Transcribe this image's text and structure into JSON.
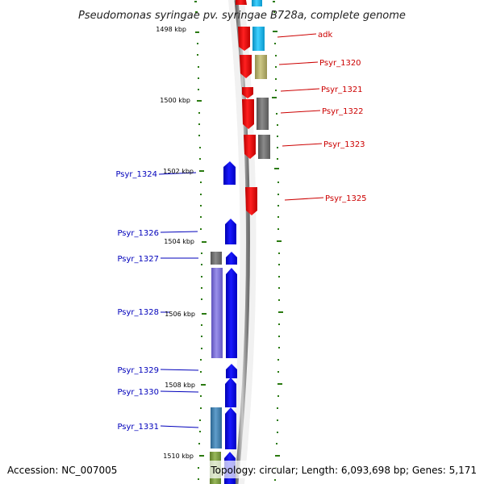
{
  "title": "Pseudomonas syringae pv. syringae B728a, complete genome",
  "footer": {
    "accession": "Accession: NC_007005",
    "summary": "Topology: circular; Length: 6,093,698 bp; Genes: 5,171"
  },
  "position_labels": [
    "1498 kbp",
    "1500 kbp",
    "1502 kbp",
    "1504 kbp",
    "1506 kbp",
    "1508 kbp",
    "1510 kbp"
  ],
  "forward_genes": [
    "adk",
    "Psyr_1320",
    "Psyr_1321",
    "Psyr_1322",
    "Psyr_1323",
    "Psyr_1325"
  ],
  "reverse_genes": [
    "Psyr_1324",
    "Psyr_1326",
    "Psyr_1327",
    "Psyr_1328",
    "Psyr_1329",
    "Psyr_1330",
    "Psyr_1331"
  ],
  "colors": {
    "forward_label": "#cc0000",
    "reverse_label": "#0000bb",
    "forward_strand": "#ee0000",
    "reverse_strand": "#0000ee",
    "backbone": "#888888",
    "tick": "#2a7a10",
    "cog_cyan": "#19b8e8",
    "cog_olive": "#b0ab68",
    "cog_grey": "#6e6e6e",
    "cog_lavender": "#7b70d4",
    "cog_steel": "#3f7fb0",
    "cog_green": "#7a9a3a"
  }
}
